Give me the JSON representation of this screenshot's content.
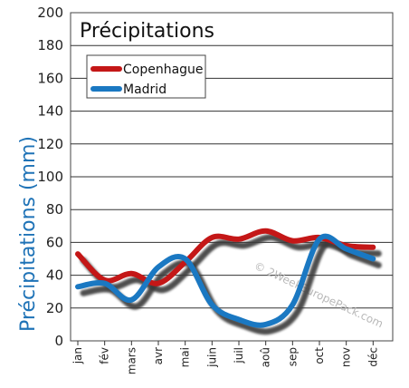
{
  "chart_data": {
    "type": "line",
    "title": "Précipitations",
    "ylabel": "Précipitations (mm)",
    "xlabel": "",
    "ylim": [
      0,
      200
    ],
    "yticks": [
      "0",
      "20",
      "40",
      "60",
      "80",
      "100",
      "120",
      "140",
      "160",
      "180",
      "200"
    ],
    "categories": [
      "jan",
      "fév",
      "mars",
      "avr",
      "mai",
      "juin",
      "juil",
      "aoû",
      "sep",
      "oct",
      "nov",
      "déc"
    ],
    "series": [
      {
        "name": "Copenhague",
        "color": "#c41717",
        "values": [
          53,
          37,
          41,
          35,
          48,
          63,
          62,
          67,
          61,
          63,
          58,
          57
        ]
      },
      {
        "name": "Madrid",
        "color": "#1a78c2",
        "values": [
          33,
          35,
          25,
          45,
          50,
          22,
          13,
          10,
          22,
          62,
          56,
          50
        ]
      }
    ],
    "grid": true,
    "legend": "top-left",
    "watermark": "© 2WeekEuropePack.com"
  }
}
